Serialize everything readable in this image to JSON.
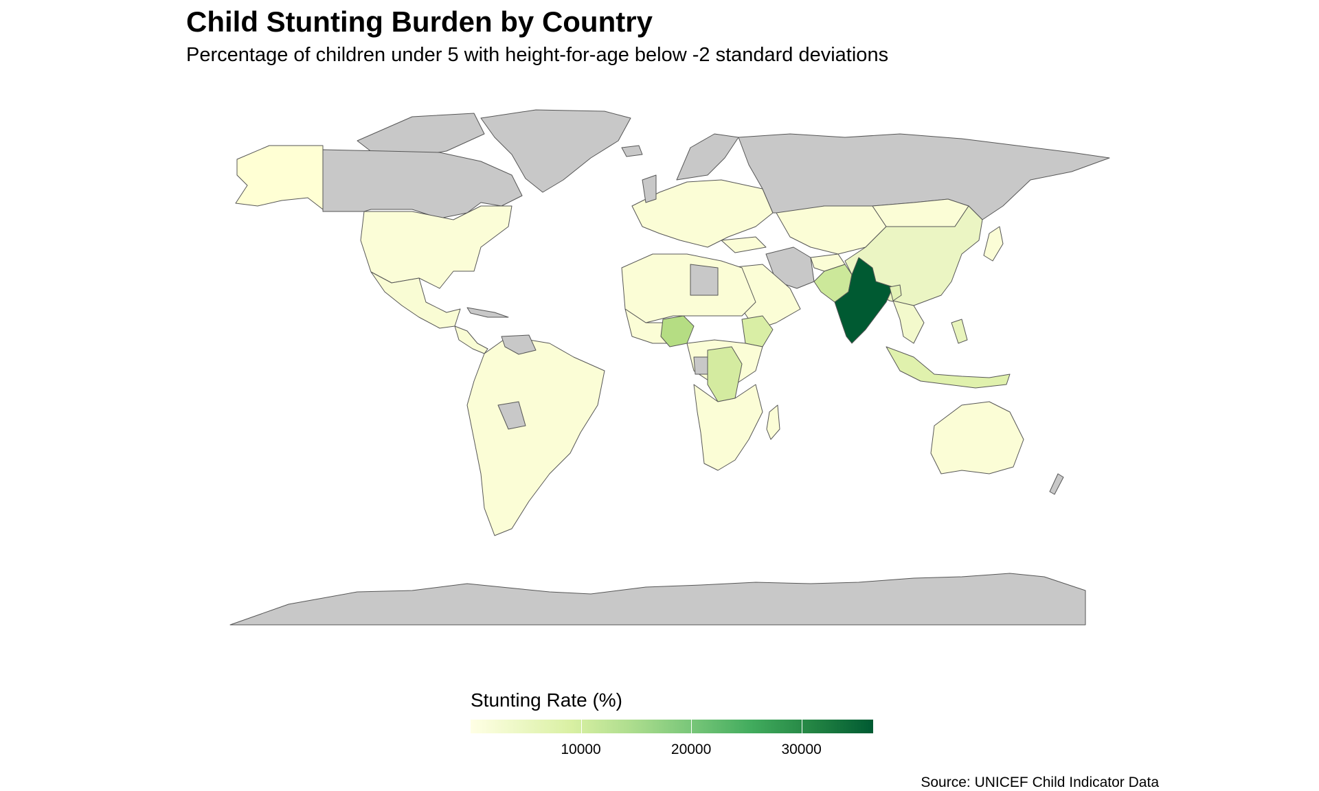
{
  "title": "Child Stunting Burden by Country",
  "subtitle": "Percentage of children under 5 with height-for-age below -2 standard deviations",
  "legend": {
    "title": "Stunting Rate (%)",
    "min": 0,
    "max": 36500,
    "ticks": [
      {
        "value": 10000,
        "label": "10000"
      },
      {
        "value": 20000,
        "label": "20000"
      },
      {
        "value": 30000,
        "label": "30000"
      }
    ],
    "colors": [
      "#ffffe5",
      "#d9f0a3",
      "#addd8e",
      "#78c679",
      "#41ab5d",
      "#238443",
      "#005a32"
    ]
  },
  "map": {
    "no_data_color": "#c8c8c8",
    "border_color": "#555555",
    "highlighted_countries": [
      {
        "name": "India",
        "value": 36500,
        "color": "#005a32"
      },
      {
        "name": "Nigeria",
        "value": 12000,
        "color": "#b5dd83"
      },
      {
        "name": "Pakistan",
        "value": 9500,
        "color": "#cce89a"
      },
      {
        "name": "DR Congo",
        "value": 8000,
        "color": "#d4eba0"
      },
      {
        "name": "Ethiopia",
        "value": 7500,
        "color": "#d9eea5"
      },
      {
        "name": "Indonesia",
        "value": 6500,
        "color": "#e0f1ad"
      },
      {
        "name": "China",
        "value": 5500,
        "color": "#ebf5c3"
      },
      {
        "name": "Bangladesh",
        "value": 5000,
        "color": "#e3f2b5"
      },
      {
        "name": "Philippines",
        "value": 3500,
        "color": "#e8f4bc"
      }
    ]
  },
  "source": "Source: UNICEF Child Indicator Data"
}
